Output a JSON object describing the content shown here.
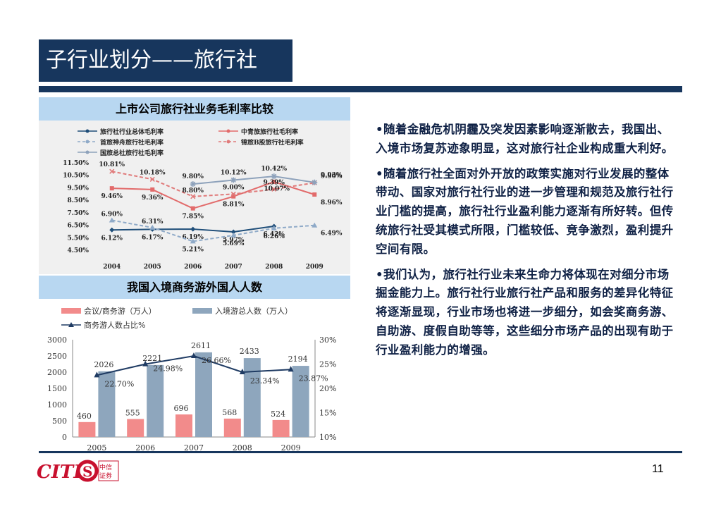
{
  "title": "子行业划分——旅行社",
  "chart1": {
    "header": "上市公司旅行社业务毛利率比较",
    "chart_data": {
      "type": "line",
      "x": [
        "2004",
        "2005",
        "2006",
        "2007",
        "2008",
        "2009"
      ],
      "ylim": [
        4.5,
        11.5
      ],
      "y_ticks": [
        "11.50%",
        "10.50%",
        "9.50%",
        "8.50%",
        "7.50%",
        "6.50%",
        "5.50%",
        "4.50%"
      ],
      "series": [
        {
          "name": "旅行社行业总体毛利率",
          "color": "#1f4e79",
          "style": "solid",
          "marker": "diamond",
          "values": [
            6.12,
            6.17,
            6.19,
            5.97,
            6.42,
            null
          ],
          "labels": [
            "6.12%",
            "6.17%",
            "6.19%",
            "5.97%",
            "6.42%",
            ""
          ]
        },
        {
          "name": "中青旅旅行社毛利率",
          "color": "#e26b6b",
          "style": "solid",
          "marker": "square",
          "values": [
            9.46,
            9.36,
            7.85,
            8.81,
            9.98,
            8.96
          ],
          "labels": [
            "9.46%",
            "9.36%",
            "7.85%",
            "8.81%",
            "",
            "8.96%"
          ]
        },
        {
          "name": "首旅神舟旅行社毛利率",
          "color": "#8faac8",
          "style": "dashed",
          "marker": "triangle",
          "values": [
            6.9,
            6.31,
            5.21,
            5.69,
            6.26,
            6.49
          ],
          "labels": [
            "6.90%",
            "6.31%",
            "5.21%",
            "5.69%",
            "6.26%",
            "6.49%"
          ]
        },
        {
          "name": "锦旅B股旅行社毛利率",
          "color": "#e07a7a",
          "style": "dashed",
          "marker": "x",
          "values": [
            10.81,
            10.18,
            8.8,
            9.0,
            9.39,
            9.9
          ],
          "labels": [
            "10.81%",
            "10.18%",
            "8.80%",
            "9.00%",
            "9.39%",
            "9.90%"
          ]
        },
        {
          "name": "国旅总社旅行社毛利率",
          "color": "#8ea2bb",
          "style": "solid",
          "marker": "star",
          "values": [
            null,
            null,
            9.8,
            10.12,
            10.42,
            9.93
          ],
          "labels": [
            "",
            "",
            "9.80%",
            "10.12%",
            "10.42%",
            "9.93%"
          ]
        }
      ],
      "extra_labels": [
        "10.07%"
      ]
    }
  },
  "chart2": {
    "header": "我国入境商务游外国人人数",
    "chart_data": {
      "type": "bar",
      "categories": [
        "2005",
        "2006",
        "2007",
        "2008",
        "2009"
      ],
      "series": [
        {
          "name": "会议/商务游（万人）",
          "color": "#f28b8b",
          "values": [
            460,
            555,
            696,
            568,
            524
          ]
        },
        {
          "name": "入境游总人数（万人）",
          "color": "#8ea6bd",
          "values": [
            2026,
            2221,
            2611,
            2433,
            2194
          ]
        },
        {
          "name": "商务游人数占比%",
          "color": "#1f3b63",
          "type": "line",
          "values": [
            22.7,
            24.98,
            26.66,
            23.34,
            23.87
          ],
          "labels": [
            "22.70%",
            "24.98%",
            "26.66%",
            "23.34%",
            "23.87%"
          ]
        }
      ],
      "ylim": [
        0,
        3000
      ],
      "y_ticks": [
        "3000",
        "2500",
        "2000",
        "1500",
        "1000",
        "500",
        "0"
      ],
      "y2lim": [
        10,
        30
      ],
      "y2_ticks": [
        "30%",
        "25%",
        "20%",
        "15%",
        "10%"
      ]
    }
  },
  "bullets": [
    "•随着金融危机阴霾及突发因素影响逐渐散去，我国出、入境市场复苏迹象明显，这对旅行社企业构成重大利好。",
    "•随着旅行社全面对外开放的政策实施对行业发展的整体带动、国家对旅行社行业的进一步管理和规范及旅行社行业门槛的提高，旅行社行业盈利能力逐渐有所好转。但传统旅行社受其模式所限，门槛较低、竞争激烈，盈利提升空间有限。",
    "•我们认为，旅行社行业未来生命力将体现在对细分市场掘金能力上。旅行社行业旅行社产品和服务的差异化特征将逐渐显现，行业市场也将进一步细分，如会奖商务游、自助游、度假自助等等，这些细分市场产品的出现有助于行业盈利能力的增强。"
  ],
  "logo": {
    "text": "CITICS",
    "cn_text": "中信证券",
    "color": "#c8102e"
  },
  "page_number": "11"
}
